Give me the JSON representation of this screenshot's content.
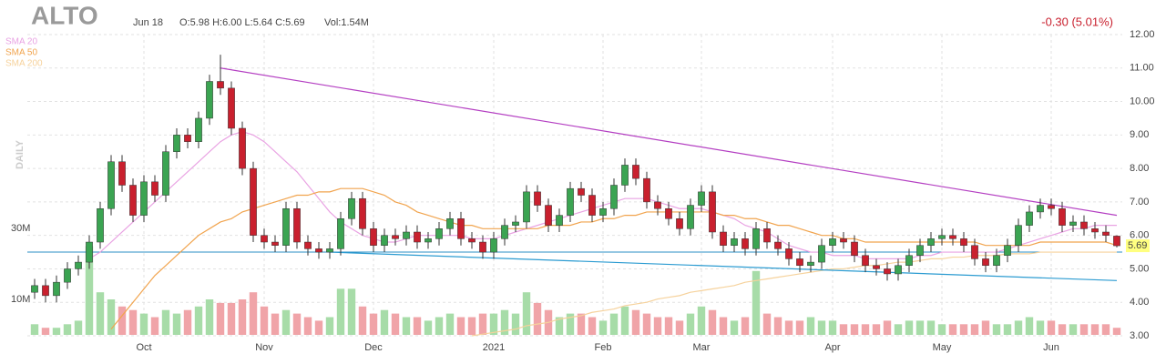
{
  "chart_data": {
    "type": "candlestick",
    "ticker": "ALTO",
    "date": "Jun 18",
    "ohlc_text": "O:5.98 H:6.00 L:5.64 C:5.69",
    "volume_text": "Vol:1.54M",
    "change_text": "-0.30 (5.01%)",
    "period_label": "DAILY",
    "last_label": "5.69",
    "up_color": "#3ba452",
    "down_color": "#c9202e",
    "vol_up_color": "#a7dca8",
    "vol_down_color": "#f0a4a8",
    "ylim": [
      3,
      12
    ],
    "yticks": [
      {
        "value": 3,
        "label": "3.00"
      },
      {
        "value": 4,
        "label": "4.00"
      },
      {
        "value": 5,
        "label": "5.00"
      },
      {
        "value": 6,
        "label": "6.00"
      },
      {
        "value": 7,
        "label": "7.00"
      },
      {
        "value": 8,
        "label": "8.00"
      },
      {
        "value": 9,
        "label": "9.00"
      },
      {
        "value": 10,
        "label": "10.00"
      },
      {
        "value": 11,
        "label": "11.00"
      },
      {
        "value": 12,
        "label": "12.00"
      }
    ],
    "vol_ylim": [
      0,
      30
    ],
    "vol_ticks": [
      {
        "value": 10,
        "label": "10M"
      },
      {
        "value": 30,
        "label": "30M"
      }
    ],
    "grid": true,
    "categories": [
      null,
      null,
      null,
      null,
      null,
      null,
      null,
      null,
      null,
      null,
      "Oct",
      null,
      null,
      null,
      null,
      null,
      null,
      null,
      null,
      null,
      null,
      "Nov",
      null,
      null,
      null,
      null,
      null,
      null,
      null,
      null,
      null,
      "Dec",
      null,
      null,
      null,
      null,
      null,
      null,
      null,
      null,
      null,
      null,
      "2021",
      null,
      null,
      null,
      null,
      null,
      null,
      null,
      null,
      null,
      "Feb",
      null,
      null,
      null,
      null,
      null,
      null,
      null,
      null,
      "Mar",
      null,
      null,
      null,
      null,
      null,
      null,
      null,
      null,
      null,
      null,
      null,
      "Apr",
      null,
      null,
      null,
      null,
      null,
      null,
      null,
      null,
      null,
      "May",
      null,
      null,
      null,
      null,
      null,
      null,
      null,
      null,
      null,
      "Jun",
      null,
      null,
      null,
      null,
      null,
      null
    ],
    "open": [
      4.3,
      4.5,
      4.2,
      4.6,
      5.0,
      5.2,
      5.8,
      6.8,
      8.2,
      7.5,
      6.6,
      7.6,
      7.2,
      8.5,
      9.0,
      8.8,
      9.5,
      10.6,
      10.4,
      9.2,
      8.0,
      6.0,
      5.8,
      5.7,
      6.8,
      5.8,
      5.6,
      5.5,
      5.6,
      6.5,
      7.1,
      6.2,
      5.7,
      6.0,
      5.9,
      6.1,
      5.8,
      5.9,
      6.2,
      6.5,
      5.9,
      5.8,
      5.5,
      5.9,
      6.3,
      6.4,
      7.3,
      6.9,
      6.3,
      6.6,
      7.4,
      7.2,
      6.6,
      6.8,
      7.5,
      8.1,
      7.7,
      7.0,
      6.8,
      6.5,
      6.2,
      6.9,
      7.3,
      6.1,
      5.7,
      5.9,
      5.6,
      6.2,
      5.8,
      5.6,
      5.3,
      5.1,
      5.2,
      5.7,
      5.9,
      5.8,
      5.4,
      5.1,
      5.0,
      4.85,
      5.1,
      5.4,
      5.7,
      5.9,
      6.0,
      5.9,
      5.7,
      5.3,
      5.1,
      5.4,
      5.7,
      6.3,
      6.7,
      6.9,
      6.8,
      6.3,
      6.4,
      6.2,
      6.1,
      5.98
    ],
    "high": [
      4.7,
      4.7,
      4.8,
      5.2,
      5.4,
      6.0,
      7.0,
      8.4,
      8.4,
      7.7,
      7.8,
      7.8,
      8.7,
      9.2,
      9.2,
      9.7,
      10.8,
      11.4,
      10.6,
      9.4,
      8.2,
      6.2,
      6.0,
      7.0,
      7.0,
      6.0,
      5.8,
      5.8,
      6.7,
      7.3,
      7.3,
      6.4,
      6.2,
      6.2,
      6.3,
      6.3,
      6.1,
      6.4,
      6.7,
      6.7,
      6.1,
      6.0,
      6.1,
      6.5,
      6.6,
      7.5,
      7.5,
      7.1,
      6.8,
      7.6,
      7.6,
      7.4,
      7.0,
      7.7,
      8.3,
      8.3,
      7.9,
      7.2,
      7.0,
      6.7,
      7.1,
      7.5,
      7.5,
      6.3,
      6.1,
      6.1,
      6.4,
      6.4,
      6.0,
      5.8,
      5.5,
      5.4,
      5.9,
      6.1,
      6.1,
      6.0,
      5.6,
      5.3,
      5.2,
      5.3,
      5.6,
      5.9,
      6.1,
      6.2,
      6.2,
      6.1,
      5.9,
      5.5,
      5.6,
      5.9,
      6.5,
      6.9,
      7.1,
      7.1,
      7.0,
      6.6,
      6.6,
      6.4,
      6.3,
      6.0
    ],
    "low": [
      4.1,
      4.0,
      4.0,
      4.4,
      4.8,
      5.0,
      5.6,
      6.6,
      7.3,
      6.4,
      6.4,
      7.0,
      7.0,
      8.3,
      8.6,
      8.6,
      9.3,
      10.2,
      9.0,
      7.8,
      5.8,
      5.6,
      5.5,
      5.5,
      5.6,
      5.4,
      5.3,
      5.3,
      5.4,
      6.3,
      6.0,
      5.5,
      5.5,
      5.7,
      5.7,
      5.6,
      5.6,
      5.7,
      6.0,
      5.7,
      5.6,
      5.3,
      5.3,
      5.7,
      6.1,
      6.2,
      6.7,
      6.1,
      6.1,
      6.4,
      7.0,
      6.4,
      6.4,
      6.6,
      7.3,
      7.5,
      6.8,
      6.6,
      6.3,
      6.0,
      6.0,
      6.7,
      5.9,
      5.5,
      5.5,
      5.4,
      5.4,
      5.6,
      5.4,
      5.1,
      4.9,
      4.9,
      5.0,
      5.5,
      5.6,
      5.2,
      4.9,
      4.8,
      4.65,
      4.65,
      4.9,
      5.2,
      5.5,
      5.7,
      5.7,
      5.5,
      5.1,
      4.9,
      4.9,
      5.2,
      5.5,
      6.1,
      6.5,
      6.6,
      6.1,
      6.1,
      6.0,
      5.9,
      5.8,
      5.64
    ],
    "close": [
      4.5,
      4.2,
      4.6,
      5.0,
      5.2,
      5.8,
      6.8,
      8.2,
      7.5,
      6.6,
      7.6,
      7.2,
      8.5,
      9.0,
      8.8,
      9.5,
      10.6,
      10.4,
      9.2,
      8.0,
      6.0,
      5.8,
      5.7,
      6.8,
      5.8,
      5.6,
      5.5,
      5.6,
      6.5,
      7.1,
      6.2,
      5.7,
      6.0,
      5.9,
      6.1,
      5.8,
      5.9,
      6.2,
      6.5,
      5.9,
      5.8,
      5.5,
      5.9,
      6.3,
      6.4,
      7.3,
      6.9,
      6.3,
      6.6,
      7.4,
      7.2,
      6.6,
      6.8,
      7.5,
      8.1,
      7.7,
      7.0,
      6.8,
      6.5,
      6.2,
      6.9,
      7.3,
      6.1,
      5.7,
      5.9,
      5.6,
      6.2,
      5.8,
      5.6,
      5.3,
      5.1,
      5.2,
      5.7,
      5.9,
      5.8,
      5.4,
      5.1,
      5.0,
      4.85,
      5.1,
      5.4,
      5.7,
      5.9,
      6.0,
      5.9,
      5.7,
      5.3,
      5.1,
      5.4,
      5.7,
      6.3,
      6.7,
      6.9,
      6.8,
      6.3,
      6.4,
      6.2,
      6.1,
      6.0,
      5.69
    ],
    "volume": [
      3,
      2,
      2,
      3,
      4,
      25,
      12,
      10,
      8,
      7,
      6,
      5,
      7,
      6,
      7,
      8,
      10,
      9,
      9,
      10,
      12,
      8,
      6,
      7,
      6,
      5,
      4,
      5,
      13,
      13,
      8,
      6,
      7,
      6,
      5,
      5,
      4,
      5,
      6,
      5,
      5,
      6,
      6,
      7,
      6,
      12,
      9,
      7,
      5,
      6,
      6,
      5,
      4,
      6,
      8,
      7,
      6,
      5,
      5,
      4,
      6,
      8,
      7,
      5,
      4,
      5,
      18,
      6,
      5,
      4,
      4,
      5,
      4,
      4,
      3,
      3,
      3,
      3,
      4,
      3,
      4,
      4,
      4,
      3,
      3,
      3,
      3,
      4,
      3,
      3,
      4,
      5,
      4,
      4,
      3,
      3,
      3,
      3,
      3,
      2
    ],
    "series": [
      {
        "name": "SMA 20",
        "color": "#e9a3e3",
        "values": [
          null,
          null,
          null,
          null,
          null,
          5.3,
          5.5,
          5.8,
          6.1,
          6.4,
          6.7,
          7.0,
          7.3,
          7.6,
          7.9,
          8.2,
          8.5,
          8.8,
          9.0,
          9.1,
          9.0,
          8.8,
          8.5,
          8.2,
          7.9,
          7.5,
          7.1,
          6.7,
          6.4,
          6.2,
          6.0,
          5.9,
          5.8,
          5.8,
          5.9,
          6.0,
          6.0,
          6.0,
          6.0,
          6.0,
          5.9,
          5.9,
          5.9,
          6.0,
          6.1,
          6.2,
          6.3,
          6.4,
          6.5,
          6.6,
          6.7,
          6.8,
          6.9,
          7.0,
          7.1,
          7.1,
          7.1,
          7.0,
          6.9,
          6.8,
          6.8,
          6.8,
          6.7,
          6.6,
          6.5,
          6.3,
          6.2,
          6.1,
          5.9,
          5.7,
          5.6,
          5.5,
          5.5,
          5.4,
          5.4,
          5.4,
          5.3,
          5.3,
          5.3,
          5.3,
          5.3,
          5.4,
          5.4,
          5.5,
          5.5,
          5.5,
          5.5,
          5.5,
          5.5,
          5.6,
          5.7,
          5.8,
          5.9,
          6.0,
          6.1,
          6.2,
          6.2,
          6.3,
          6.3,
          6.3
        ]
      },
      {
        "name": "SMA 50",
        "color": "#f1a44e",
        "values": [
          null,
          null,
          null,
          null,
          null,
          null,
          null,
          3.2,
          3.6,
          4.0,
          4.4,
          4.8,
          5.1,
          5.4,
          5.7,
          6.0,
          6.2,
          6.4,
          6.5,
          6.7,
          6.8,
          6.9,
          7.0,
          7.1,
          7.2,
          7.2,
          7.3,
          7.3,
          7.4,
          7.4,
          7.4,
          7.3,
          7.2,
          7.0,
          6.9,
          6.7,
          6.6,
          6.5,
          6.4,
          6.3,
          6.3,
          6.2,
          6.2,
          6.2,
          6.2,
          6.2,
          6.2,
          6.3,
          6.3,
          6.3,
          6.4,
          6.4,
          6.5,
          6.5,
          6.6,
          6.6,
          6.7,
          6.7,
          6.7,
          6.7,
          6.7,
          6.7,
          6.7,
          6.6,
          6.6,
          6.5,
          6.5,
          6.4,
          6.3,
          6.3,
          6.2,
          6.1,
          6.0,
          6.0,
          5.9,
          5.9,
          5.8,
          5.8,
          5.8,
          5.8,
          5.8,
          5.8,
          5.8,
          5.8,
          5.8,
          5.8,
          5.8,
          5.7,
          5.7,
          5.7,
          5.7,
          5.7,
          5.8,
          5.8,
          5.8,
          5.8,
          5.8,
          5.8,
          5.8,
          5.7
        ]
      },
      {
        "name": "SMA 200",
        "color": "#f6d29c",
        "values": [
          null,
          null,
          null,
          null,
          null,
          null,
          null,
          null,
          null,
          null,
          null,
          null,
          null,
          null,
          null,
          null,
          null,
          null,
          null,
          null,
          null,
          null,
          null,
          null,
          null,
          null,
          null,
          null,
          null,
          null,
          null,
          null,
          null,
          null,
          null,
          null,
          null,
          null,
          null,
          null,
          3.0,
          3.05,
          3.1,
          3.15,
          3.2,
          3.3,
          3.35,
          3.4,
          3.5,
          3.55,
          3.6,
          3.7,
          3.75,
          3.8,
          3.9,
          3.95,
          4.0,
          4.1,
          4.15,
          4.2,
          4.3,
          4.35,
          4.4,
          4.45,
          4.5,
          4.6,
          4.65,
          4.7,
          4.75,
          4.8,
          4.85,
          4.9,
          4.95,
          5.0,
          5.0,
          5.05,
          5.1,
          5.1,
          5.15,
          5.2,
          5.2,
          5.25,
          5.3,
          5.3,
          5.35,
          5.35,
          5.4,
          5.4,
          5.4,
          5.45,
          5.45,
          5.45,
          5.5,
          5.5,
          5.5,
          5.5,
          5.5,
          5.5,
          5.5,
          5.5
        ]
      }
    ],
    "horizontal_line": {
      "value": 5.5,
      "color": "#2b8fc4"
    },
    "trendlines": [
      {
        "color": "#b43fc2",
        "x": [
          17,
          99
        ],
        "values": [
          11.0,
          6.6
        ]
      },
      {
        "color": "#2b9bd1",
        "x": [
          27,
          99
        ],
        "values": [
          5.5,
          4.65
        ]
      }
    ]
  }
}
